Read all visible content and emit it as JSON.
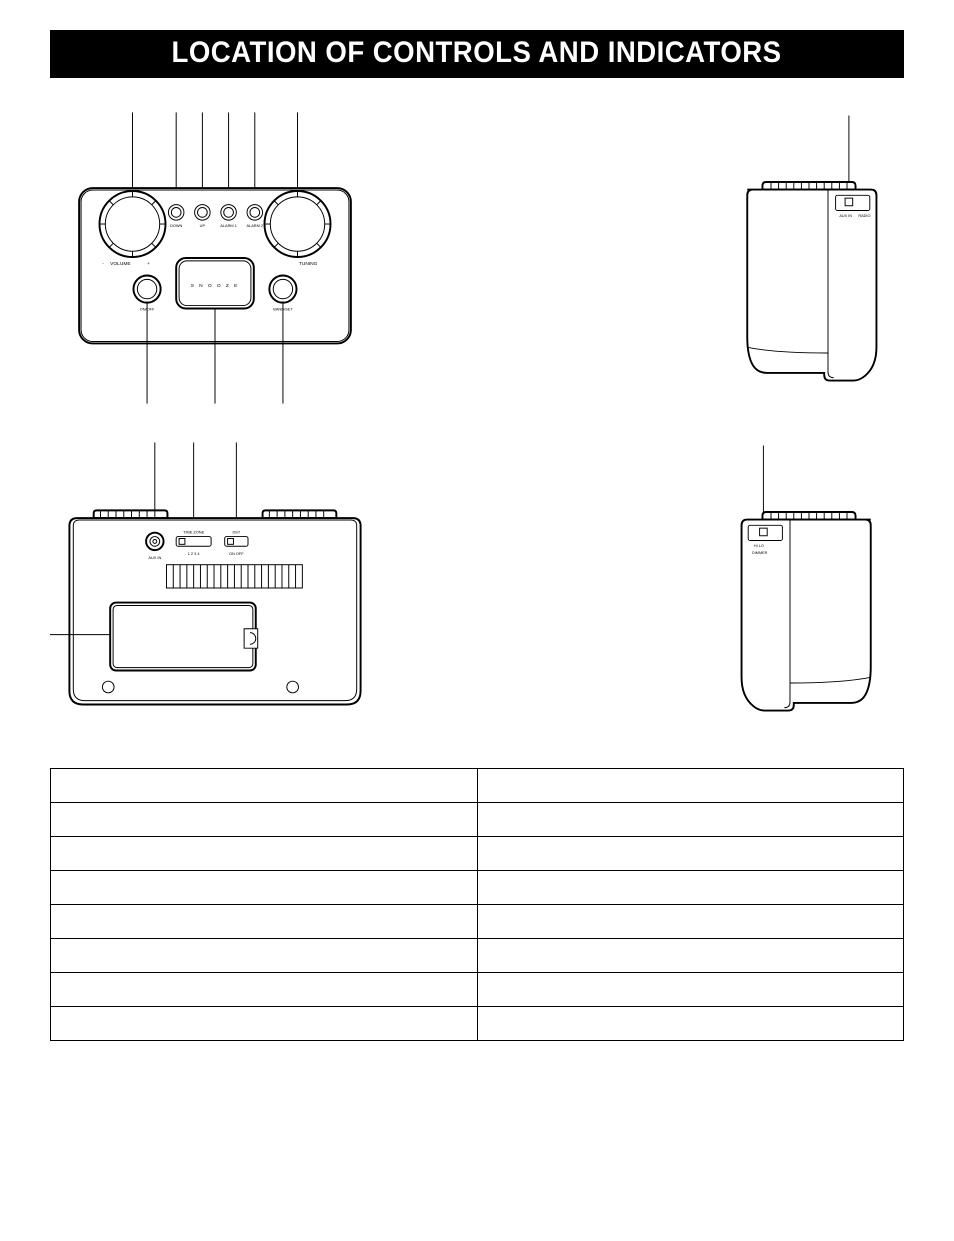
{
  "title": "LOCATION OF CONTROLS AND INDICATORS",
  "colors": {
    "page_bg": "#ffffff",
    "title_bg": "#000000",
    "title_fg": "#ffffff",
    "line": "#000000"
  },
  "top_view": {
    "labels": {
      "volume": "VOLUME",
      "tuning": "TUNING",
      "down": "DOWN",
      "up": "UP",
      "alarm1": "ALARM 1",
      "alarm2": "ALARM 2",
      "onoff": "ON/OFF",
      "bandset": "BAND/SET",
      "snooze": "S N O O Z E"
    },
    "callout_lines_top_x": [
      85,
      130,
      157,
      184,
      211,
      255
    ],
    "callout_lines_bottom_x": [
      100,
      170,
      240
    ]
  },
  "right_side_view": {
    "labels": {
      "auxin": "AUX IN",
      "radio": "RADIO"
    },
    "callout_lines_top_x": [
      142
    ]
  },
  "back_view": {
    "labels": {
      "auxin": "AUX IN",
      "timezone": "TIME ZONE",
      "tz_nums": "1 2 3 4",
      "dst": "DST",
      "dst_onoff": "ON  OFF"
    },
    "callout_lines_top_x": [
      108,
      148,
      192
    ],
    "callout_lines_left_y": [
      198
    ]
  },
  "left_side_view": {
    "labels": {
      "hi_lo": "HI  LO",
      "dimmer": "DIMMER"
    },
    "callout_lines_top_x": [
      52
    ]
  },
  "controls_table": {
    "columns": [
      "",
      ""
    ],
    "rows": [
      [
        "",
        ""
      ],
      [
        "",
        ""
      ],
      [
        "",
        ""
      ],
      [
        "",
        ""
      ],
      [
        "",
        ""
      ],
      [
        "",
        ""
      ],
      [
        "",
        ""
      ],
      [
        "",
        ""
      ]
    ]
  }
}
